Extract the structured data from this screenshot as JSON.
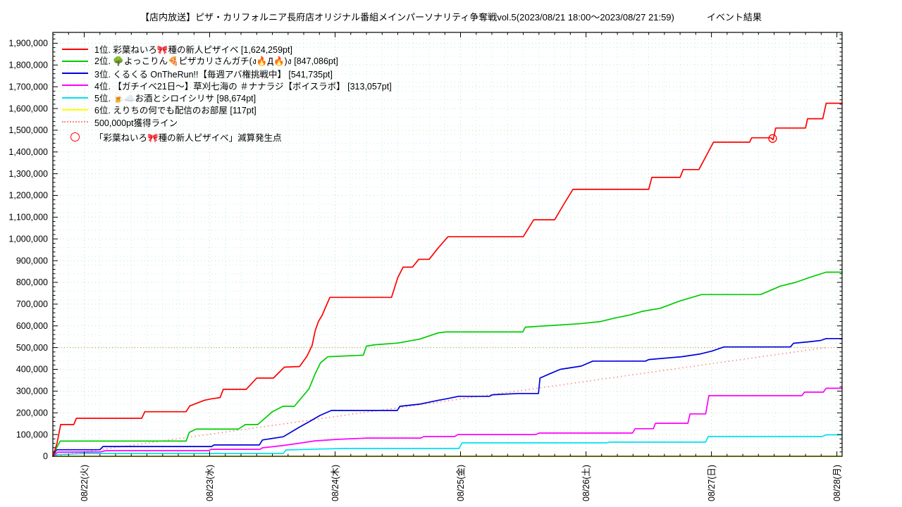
{
  "header": {
    "title_main": "【店内放送】ピザ・カリフォルニア長府店オリジナル番組メインパーソナリティ争奪戦vol.5(2023/08/21 18:00～2023/08/27 21:59)",
    "title_suffix": "イベント結果"
  },
  "legend": {
    "items": [
      {
        "type": "line",
        "style": "solid",
        "color": "#ff0000",
        "label": "1位. 彩葉ねいろ🎀種の新人ピザイベ [1,624,259pt]"
      },
      {
        "type": "line",
        "style": "solid",
        "color": "#00cc00",
        "label": "2位. 🌳よっこりん🍕ピザカリさんガチ(ง🔥Д🔥)ง [847,086pt]"
      },
      {
        "type": "line",
        "style": "solid",
        "color": "#0000dd",
        "label": "3位. くるくる OnTheRun!!【毎週アバ権挑戦中】 [541,735pt]"
      },
      {
        "type": "line",
        "style": "solid",
        "color": "#ff00ff",
        "label": "4位. 【ガチイベ21日～】草刈七海の ＃ナナラジ【ボイスラボ】 [313,057pt]"
      },
      {
        "type": "line",
        "style": "solid",
        "color": "#00e0f0",
        "label": "5位. 🍺☁️お酒とシロイシリサ [98,674pt]"
      },
      {
        "type": "line",
        "style": "solid",
        "color": "#ffff00",
        "label": "6位. えりちの何でも配信のお部屋 [117pt]"
      },
      {
        "type": "line",
        "style": "dotted",
        "color": "#ff8888",
        "label": "500,000pt獲得ライン"
      },
      {
        "type": "circle",
        "color": "#ff0000",
        "label": "「彩葉ねいろ🎀種の新人ピザイベ」減算発生点"
      }
    ]
  },
  "chart_data": {
    "type": "line",
    "title": "【店内放送】ピザ・カリフォルニア長府店オリジナル番組メインパーソナリティ争奪戦vol.5(2023/08/21 18:00～2023/08/27 21:59) イベント結果",
    "xlabel": "",
    "ylabel": "",
    "x_axis": {
      "range_hours": [
        -6,
        145
      ],
      "start_datetime_label": "2023/08/21 18:00",
      "end_datetime_label": "2023/08/27 21:59",
      "minor_step_hours": 3,
      "major_step_hours": 24,
      "ticks": [
        {
          "t": 0,
          "label": "08/22(火)"
        },
        {
          "t": 24,
          "label": "08/23(水)"
        },
        {
          "t": 48,
          "label": "08/24(木)"
        },
        {
          "t": 72,
          "label": "08/25(金)"
        },
        {
          "t": 96,
          "label": "08/26(土)"
        },
        {
          "t": 120,
          "label": "08/27(日)"
        },
        {
          "t": 144,
          "label": "08/28(月)"
        }
      ]
    },
    "y_axis": {
      "min": 0,
      "max": 1950000,
      "label_step": 100000,
      "label_max": 1900000,
      "minor_tick_step": 20000,
      "minor_grid_step": 40000
    },
    "grid": {
      "major_color": "#b9e6b9",
      "minor_color": "#bfeef2",
      "on": true
    },
    "target_line": {
      "value": 500000,
      "color": "#c8aa5a",
      "label": "500,000pt獲得ライン"
    },
    "pace_line": {
      "from": [
        -6,
        0
      ],
      "to": [
        141.98,
        500000
      ],
      "color": "#ff8888",
      "label": "500,000pt獲得ライン"
    },
    "deduction_marker": {
      "t": 131.7,
      "value": 1462000,
      "color": "#ff0000",
      "label": "「彩葉ねいろ🎀種の新人ピザイベ」減算発生点"
    },
    "series": [
      {
        "name": "6位. えりちの何でも配信のお部屋",
        "final_pt": 117,
        "color": "#ffff00",
        "points": [
          [
            -6,
            0
          ],
          [
            145,
            117
          ]
        ]
      },
      {
        "name": "5位. 🍺☁️お酒とシロイシリサ",
        "final_pt": 98674,
        "color": "#00e0f0",
        "points": [
          [
            -6,
            0
          ],
          [
            -5.1,
            8000
          ],
          [
            0.4,
            13000
          ],
          [
            38.1,
            13000
          ],
          [
            38.6,
            29000
          ],
          [
            44.6,
            33000
          ],
          [
            50.1,
            36000
          ],
          [
            71.7,
            36000
          ],
          [
            72.3,
            62000
          ],
          [
            99.9,
            62000
          ],
          [
            100.5,
            65000
          ],
          [
            118.9,
            65000
          ],
          [
            119.4,
            91000
          ],
          [
            141.2,
            91000
          ],
          [
            141.95,
            98674
          ],
          [
            145,
            98674
          ]
        ]
      },
      {
        "name": "4位. 【ガチイベ21日～】草刈七海の ＃ナナラジ【ボイスラボ】",
        "final_pt": 313057,
        "color": "#ff00ff",
        "points": [
          [
            -6,
            0
          ],
          [
            -5.1,
            19000
          ],
          [
            3.1,
            20000
          ],
          [
            4.1,
            26000
          ],
          [
            23.8,
            26000
          ],
          [
            24.3,
            32000
          ],
          [
            33.6,
            32000
          ],
          [
            34.1,
            39000
          ],
          [
            38.1,
            50000
          ],
          [
            41.1,
            60000
          ],
          [
            44.1,
            71000
          ],
          [
            48.6,
            78000
          ],
          [
            54.1,
            84000
          ],
          [
            64.4,
            84000
          ],
          [
            65,
            91000
          ],
          [
            70.9,
            91000
          ],
          [
            71.5,
            100000
          ],
          [
            86.4,
            100000
          ],
          [
            87,
            107000
          ],
          [
            104.9,
            107000
          ],
          [
            105.4,
            127000
          ],
          [
            108.9,
            127000
          ],
          [
            109.3,
            152000
          ],
          [
            115.5,
            152000
          ],
          [
            115.9,
            195000
          ],
          [
            118.9,
            195000
          ],
          [
            119.5,
            279000
          ],
          [
            137.3,
            279000
          ],
          [
            137.8,
            295000
          ],
          [
            141.4,
            295000
          ],
          [
            141.95,
            313057
          ],
          [
            145,
            313057
          ]
        ]
      },
      {
        "name": "3位. くるくる OnTheRun!!【毎週アバ権挑戦中】",
        "final_pt": 541735,
        "color": "#0000dd",
        "points": [
          [
            -6,
            0
          ],
          [
            -5.3,
            30000
          ],
          [
            3,
            30000
          ],
          [
            3.6,
            45000
          ],
          [
            24.4,
            45000
          ],
          [
            24.8,
            52000
          ],
          [
            33.5,
            52000
          ],
          [
            34.1,
            75000
          ],
          [
            38.1,
            90000
          ],
          [
            41.1,
            133000
          ],
          [
            43.1,
            160000
          ],
          [
            45.1,
            188000
          ],
          [
            47.3,
            211000
          ],
          [
            59.9,
            211000
          ],
          [
            60.4,
            230000
          ],
          [
            64.2,
            240000
          ],
          [
            67.6,
            257000
          ],
          [
            69.6,
            266000
          ],
          [
            71.6,
            276000
          ],
          [
            77.5,
            276000
          ],
          [
            78.1,
            283000
          ],
          [
            83.1,
            289000
          ],
          [
            86.9,
            289000
          ],
          [
            87.2,
            360000
          ],
          [
            89.1,
            380000
          ],
          [
            91.1,
            400000
          ],
          [
            95.1,
            415000
          ],
          [
            97.3,
            438000
          ],
          [
            107.4,
            438000
          ],
          [
            108,
            445000
          ],
          [
            114.3,
            458000
          ],
          [
            117.9,
            471000
          ],
          [
            120.1,
            484000
          ],
          [
            122.4,
            503000
          ],
          [
            135.1,
            503000
          ],
          [
            135.7,
            520000
          ],
          [
            138.4,
            526000
          ],
          [
            140.9,
            533000
          ],
          [
            141.95,
            541735
          ],
          [
            145,
            541735
          ]
        ]
      },
      {
        "name": "2位. 🌳よっこりん🍕ピザカリさんガチ(ง🔥Д🔥)ง",
        "final_pt": 847086,
        "color": "#00cc00",
        "points": [
          [
            -6,
            0
          ],
          [
            -5.5,
            30000
          ],
          [
            -4.6,
            70000
          ],
          [
            19.5,
            70000
          ],
          [
            20.1,
            110000
          ],
          [
            21.4,
            125000
          ],
          [
            29.5,
            125000
          ],
          [
            30.8,
            146000
          ],
          [
            33.2,
            146000
          ],
          [
            36,
            205000
          ],
          [
            38,
            230000
          ],
          [
            40.2,
            230000
          ],
          [
            41.6,
            270000
          ],
          [
            43,
            310000
          ],
          [
            44.2,
            380000
          ],
          [
            45.2,
            430000
          ],
          [
            46.6,
            458000
          ],
          [
            53.4,
            465000
          ],
          [
            54,
            507000
          ],
          [
            55.6,
            513000
          ],
          [
            60,
            521000
          ],
          [
            64.2,
            539000
          ],
          [
            67.8,
            568000
          ],
          [
            69.2,
            572000
          ],
          [
            83.9,
            572000
          ],
          [
            84.4,
            594000
          ],
          [
            88.8,
            601000
          ],
          [
            94.8,
            610000
          ],
          [
            98.8,
            620000
          ],
          [
            101.7,
            637000
          ],
          [
            104.4,
            650000
          ],
          [
            106.8,
            667000
          ],
          [
            110.2,
            681000
          ],
          [
            113.9,
            714000
          ],
          [
            118.1,
            744000
          ],
          [
            129.4,
            744000
          ],
          [
            133.2,
            783000
          ],
          [
            136.1,
            800000
          ],
          [
            138.7,
            822000
          ],
          [
            141.95,
            847086
          ],
          [
            145,
            847086
          ]
        ]
      },
      {
        "name": "1位. 彩葉ねいろ🎀種の新人ピザイベ",
        "final_pt": 1624259,
        "color": "#ff0000",
        "points": [
          [
            -6,
            0
          ],
          [
            -5.2,
            60000
          ],
          [
            -4.5,
            146000
          ],
          [
            -2,
            146000
          ],
          [
            -1.5,
            175000
          ],
          [
            11,
            175000
          ],
          [
            11.6,
            205000
          ],
          [
            19.5,
            205000
          ],
          [
            20.2,
            232000
          ],
          [
            23,
            258000
          ],
          [
            24.5,
            265000
          ],
          [
            26,
            270000
          ],
          [
            26.6,
            308000
          ],
          [
            31,
            308000
          ],
          [
            33,
            360000
          ],
          [
            36.2,
            360000
          ],
          [
            38.3,
            410000
          ],
          [
            41.2,
            413000
          ],
          [
            42.6,
            460000
          ],
          [
            43.6,
            510000
          ],
          [
            44.2,
            578000
          ],
          [
            44.8,
            620000
          ],
          [
            45.5,
            648000
          ],
          [
            47,
            731000
          ],
          [
            58.8,
            731000
          ],
          [
            60,
            822000
          ],
          [
            61,
            870000
          ],
          [
            62.8,
            870000
          ],
          [
            64,
            906000
          ],
          [
            66,
            906000
          ],
          [
            67.6,
            955000
          ],
          [
            69.6,
            1010000
          ],
          [
            84,
            1010000
          ],
          [
            86,
            1088000
          ],
          [
            90,
            1088000
          ],
          [
            91.6,
            1153000
          ],
          [
            93.5,
            1228000
          ],
          [
            108,
            1228000
          ],
          [
            108.6,
            1283000
          ],
          [
            114,
            1283000
          ],
          [
            114.6,
            1319000
          ],
          [
            117.6,
            1319000
          ],
          [
            120.4,
            1445000
          ],
          [
            127.3,
            1445000
          ],
          [
            127.7,
            1465000
          ],
          [
            131.4,
            1465000
          ],
          [
            131.8,
            1456000
          ],
          [
            132.3,
            1510000
          ],
          [
            138,
            1510000
          ],
          [
            138.4,
            1553000
          ],
          [
            141.3,
            1553000
          ],
          [
            141.95,
            1624259
          ],
          [
            145,
            1624259
          ]
        ]
      }
    ]
  }
}
